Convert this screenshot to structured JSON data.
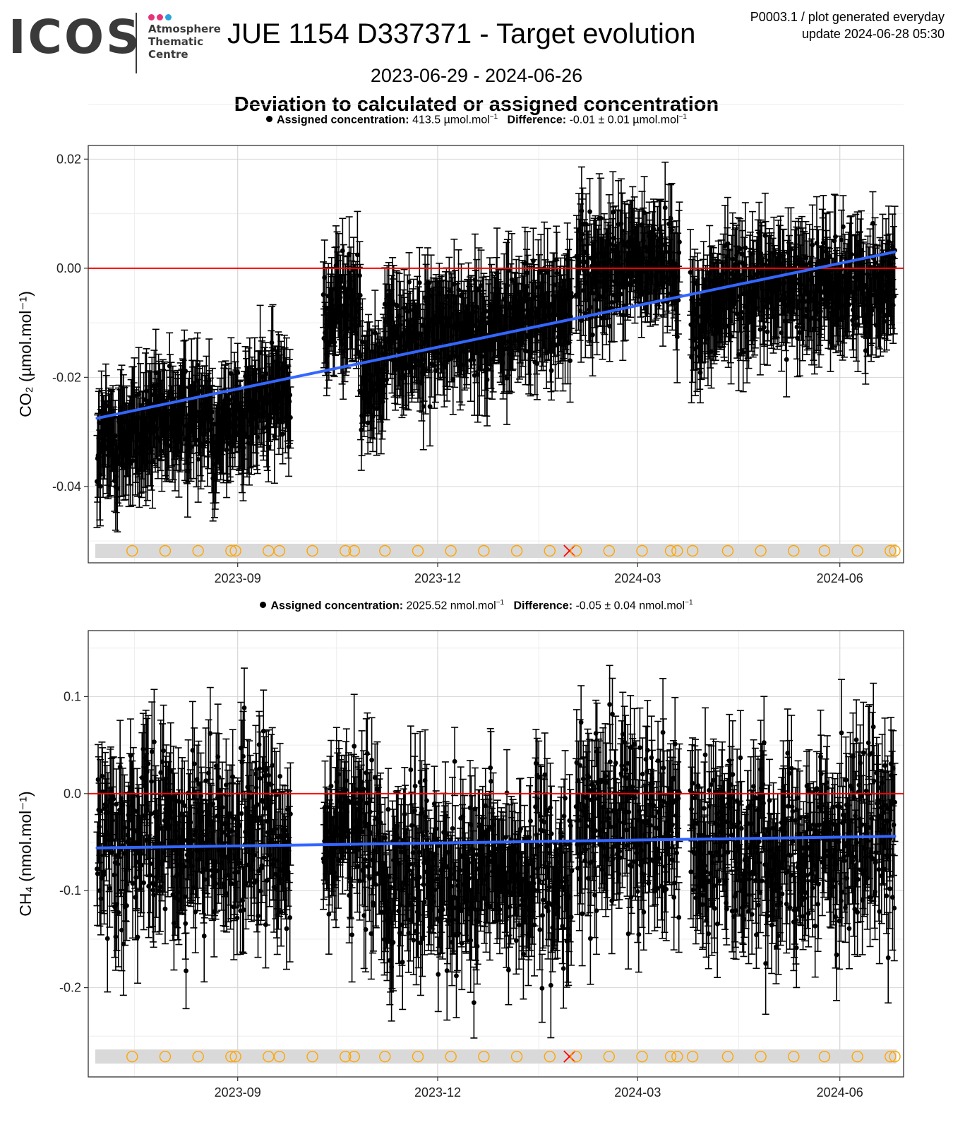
{
  "logo": {
    "name": "ICOS",
    "subtitle_lines": [
      "Atmosphere",
      "Thematic",
      "Centre"
    ],
    "dot_colors": [
      "#e6347a",
      "#e6347a",
      "#2aa4dc"
    ]
  },
  "header": {
    "title": "JUE 1154 D337371 - Target evolution",
    "generator": "P0003.1 / plot generated everyday",
    "update": "update  2024-06-28 05:30",
    "date_range": "2023-06-29 - 2024-06-26",
    "subtitle": "Deviation to calculated or assigned concentration"
  },
  "panels": [
    {
      "assigned_label": "Assigned concentration:",
      "assigned_value": "413.5 µmol.mol",
      "difference_label": "Difference:",
      "difference_value": "-0.01 ± 0.01 µmol.mol",
      "unit_exponent": "−1"
    },
    {
      "assigned_label": "Assigned concentration:",
      "assigned_value": "2025.52 nmol.mol",
      "difference_label": "Difference:",
      "difference_value": "-0.05 ± 0.04 nmol.mol",
      "unit_exponent": "−1"
    }
  ],
  "chart_data": [
    {
      "type": "scatter",
      "title": "",
      "ylabel": "CO₂ (µmol.mol⁻¹)",
      "x_range": [
        "2023-06-29",
        "2024-06-26"
      ],
      "ylim": [
        -0.054,
        0.0225
      ],
      "x_ticks": [
        {
          "date": "2023-09-01",
          "label": "2023-09"
        },
        {
          "date": "2023-12-01",
          "label": "2023-12"
        },
        {
          "date": "2024-03-01",
          "label": "2024-03"
        },
        {
          "date": "2024-06-01",
          "label": "2024-06"
        }
      ],
      "y_ticks": [
        -0.04,
        -0.02,
        0.0,
        0.02
      ],
      "y_tick_labels": [
        "-0.04",
        "-0.02",
        "0.00",
        "0.02"
      ],
      "reference_line": 0,
      "trend": {
        "start": [
          "2023-06-29",
          -0.0275
        ],
        "end": [
          "2024-06-26",
          0.003
        ]
      },
      "noise": 0.0045,
      "error_bar": 0.007,
      "segments": [
        {
          "start": "2023-06-29",
          "end": "2023-07-25",
          "from": -0.033,
          "to": -0.029
        },
        {
          "start": "2023-07-25",
          "end": "2023-08-20",
          "from": -0.03,
          "to": -0.025
        },
        {
          "start": "2023-08-20",
          "end": "2023-09-25",
          "from": -0.03,
          "to": -0.022
        },
        {
          "start": "2023-10-10",
          "end": "2023-10-27",
          "from": -0.01,
          "to": -0.006
        },
        {
          "start": "2023-10-27",
          "end": "2023-11-07",
          "from": -0.022,
          "to": -0.02
        },
        {
          "start": "2023-11-07",
          "end": "2024-01-31",
          "from": -0.013,
          "to": -0.008
        },
        {
          "start": "2024-02-02",
          "end": "2024-03-20",
          "from": -0.001,
          "to": 0.001
        },
        {
          "start": "2024-03-25",
          "end": "2024-04-08",
          "from": -0.01,
          "to": -0.006
        },
        {
          "start": "2024-04-08",
          "end": "2024-06-26",
          "from": -0.004,
          "to": -0.003
        }
      ],
      "events": [
        {
          "date": "2023-07-15",
          "marker": "circle"
        },
        {
          "date": "2023-07-30",
          "marker": "circle"
        },
        {
          "date": "2023-08-14",
          "marker": "circle"
        },
        {
          "date": "2023-08-29",
          "marker": "circle"
        },
        {
          "date": "2023-08-31",
          "marker": "circle"
        },
        {
          "date": "2023-09-15",
          "marker": "circle"
        },
        {
          "date": "2023-09-20",
          "marker": "circle"
        },
        {
          "date": "2023-10-05",
          "marker": "circle"
        },
        {
          "date": "2023-10-20",
          "marker": "circle"
        },
        {
          "date": "2023-10-24",
          "marker": "circle"
        },
        {
          "date": "2023-11-07",
          "marker": "circle"
        },
        {
          "date": "2023-11-22",
          "marker": "circle"
        },
        {
          "date": "2023-12-07",
          "marker": "circle"
        },
        {
          "date": "2023-12-22",
          "marker": "circle"
        },
        {
          "date": "2024-01-06",
          "marker": "circle"
        },
        {
          "date": "2024-01-21",
          "marker": "circle"
        },
        {
          "date": "2024-01-30",
          "marker": "cross"
        },
        {
          "date": "2024-02-02",
          "marker": "circle"
        },
        {
          "date": "2024-02-17",
          "marker": "circle"
        },
        {
          "date": "2024-03-03",
          "marker": "circle"
        },
        {
          "date": "2024-03-16",
          "marker": "circle"
        },
        {
          "date": "2024-03-19",
          "marker": "circle"
        },
        {
          "date": "2024-03-26",
          "marker": "circle"
        },
        {
          "date": "2024-04-11",
          "marker": "circle"
        },
        {
          "date": "2024-04-26",
          "marker": "circle"
        },
        {
          "date": "2024-05-11",
          "marker": "circle"
        },
        {
          "date": "2024-05-25",
          "marker": "circle"
        },
        {
          "date": "2024-06-09",
          "marker": "circle"
        },
        {
          "date": "2024-06-24",
          "marker": "circle"
        },
        {
          "date": "2024-06-26",
          "marker": "circle"
        }
      ],
      "event_y": -0.0518
    },
    {
      "type": "scatter",
      "title": "",
      "ylabel": "CH₄ (nmol.mol⁻¹)",
      "x_range": [
        "2023-06-29",
        "2024-06-26"
      ],
      "ylim": [
        -0.292,
        0.168
      ],
      "x_ticks": [
        {
          "date": "2023-09-01",
          "label": "2023-09"
        },
        {
          "date": "2023-12-01",
          "label": "2023-12"
        },
        {
          "date": "2024-03-01",
          "label": "2024-03"
        },
        {
          "date": "2024-06-01",
          "label": "2024-06"
        }
      ],
      "y_ticks": [
        -0.2,
        -0.1,
        0.0,
        0.1
      ],
      "y_tick_labels": [
        "-0.2",
        "-0.1",
        "0.0",
        "0.1"
      ],
      "reference_line": 0,
      "trend": {
        "start": [
          "2023-06-29",
          -0.056
        ],
        "end": [
          "2024-06-26",
          -0.044
        ]
      },
      "noise": 0.045,
      "error_bar": 0.045,
      "segments": [
        {
          "start": "2023-06-29",
          "end": "2023-09-25",
          "from": -0.045,
          "to": -0.05
        },
        {
          "start": "2023-10-10",
          "end": "2023-11-07",
          "from": -0.04,
          "to": -0.06
        },
        {
          "start": "2023-11-07",
          "end": "2024-01-31",
          "from": -0.08,
          "to": -0.09
        },
        {
          "start": "2024-02-02",
          "end": "2024-03-20",
          "from": -0.03,
          "to": -0.02
        },
        {
          "start": "2024-03-25",
          "end": "2024-06-26",
          "from": -0.06,
          "to": -0.045
        }
      ],
      "events": [
        {
          "date": "2023-07-15",
          "marker": "circle"
        },
        {
          "date": "2023-07-30",
          "marker": "circle"
        },
        {
          "date": "2023-08-14",
          "marker": "circle"
        },
        {
          "date": "2023-08-29",
          "marker": "circle"
        },
        {
          "date": "2023-08-31",
          "marker": "circle"
        },
        {
          "date": "2023-09-15",
          "marker": "circle"
        },
        {
          "date": "2023-09-20",
          "marker": "circle"
        },
        {
          "date": "2023-10-05",
          "marker": "circle"
        },
        {
          "date": "2023-10-20",
          "marker": "circle"
        },
        {
          "date": "2023-10-24",
          "marker": "circle"
        },
        {
          "date": "2023-11-07",
          "marker": "circle"
        },
        {
          "date": "2023-11-22",
          "marker": "circle"
        },
        {
          "date": "2023-12-07",
          "marker": "circle"
        },
        {
          "date": "2023-12-22",
          "marker": "circle"
        },
        {
          "date": "2024-01-06",
          "marker": "circle"
        },
        {
          "date": "2024-01-21",
          "marker": "circle"
        },
        {
          "date": "2024-01-30",
          "marker": "cross"
        },
        {
          "date": "2024-02-02",
          "marker": "circle"
        },
        {
          "date": "2024-02-17",
          "marker": "circle"
        },
        {
          "date": "2024-03-03",
          "marker": "circle"
        },
        {
          "date": "2024-03-16",
          "marker": "circle"
        },
        {
          "date": "2024-03-19",
          "marker": "circle"
        },
        {
          "date": "2024-03-26",
          "marker": "circle"
        },
        {
          "date": "2024-04-11",
          "marker": "circle"
        },
        {
          "date": "2024-04-26",
          "marker": "circle"
        },
        {
          "date": "2024-05-11",
          "marker": "circle"
        },
        {
          "date": "2024-05-25",
          "marker": "circle"
        },
        {
          "date": "2024-06-09",
          "marker": "circle"
        },
        {
          "date": "2024-06-24",
          "marker": "circle"
        },
        {
          "date": "2024-06-26",
          "marker": "circle"
        }
      ],
      "event_y": -0.271
    }
  ],
  "colors": {
    "trend": "#3366ff",
    "reference": "#ff0000",
    "points": "#000000",
    "event_circle": "#ffa500",
    "event_cross": "#ff0000",
    "event_band": "#d9d9d9",
    "grid_major": "#d6d6d6",
    "grid_minor": "#ededed"
  }
}
